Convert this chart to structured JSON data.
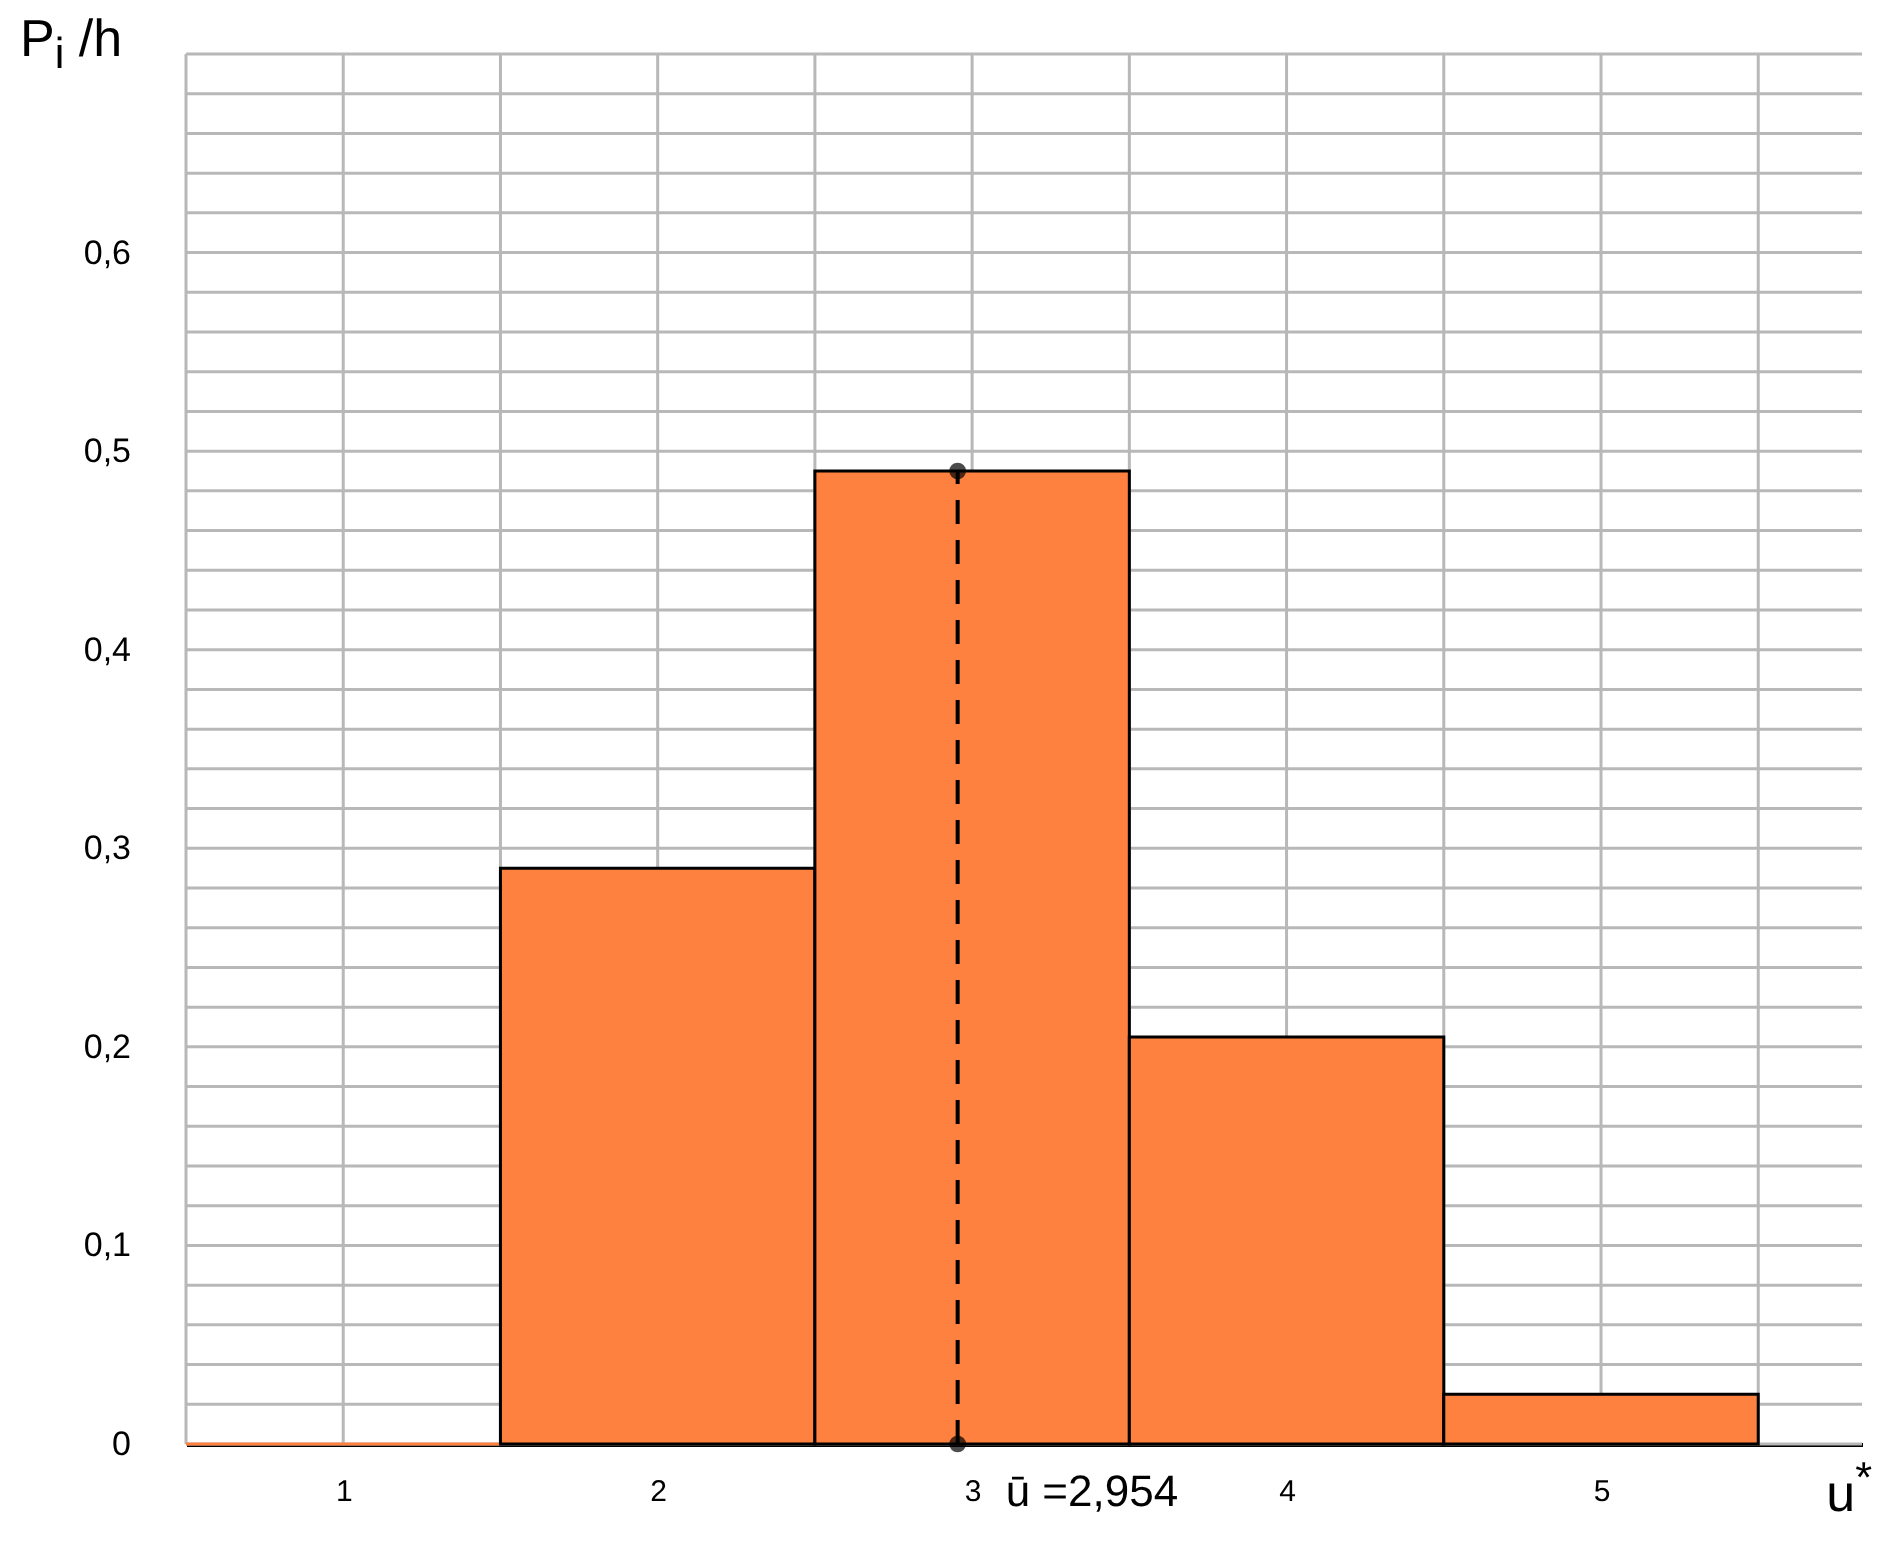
{
  "chart_data": {
    "type": "histogram",
    "xlabel": "u$^{*}$",
    "ylabel": "P$_{i}$ /h",
    "bins": [
      0.5,
      1.5,
      2.5,
      3.5,
      4.5,
      5.5
    ],
    "values": [
      0,
      0.29,
      0.49,
      0.205,
      0.025
    ],
    "color": "#fe8140",
    "series": [
      {
        "type": "line",
        "x": [
          2.954,
          2.954
        ],
        "values": [
          0,
          0.49
        ],
        "color": "#000000",
        "marker": "circle",
        "line_style": "dashed"
      }
    ],
    "annotations": [
      {
        "text": "ū =2,954",
        "x": 2.954,
        "y": 0
      }
    ],
    "xlim": [
      0.5,
      5.83
    ],
    "ylim": [
      0,
      0.7
    ],
    "xticks": [
      {
        "value": 0.5,
        "label": null
      },
      1,
      {
        "value": 1.5,
        "label": null
      },
      2,
      {
        "value": 2.5,
        "label": null
      },
      3,
      {
        "value": 3.5,
        "label": null
      },
      4,
      {
        "value": 4.5,
        "label": null
      },
      5,
      {
        "value": 5.5,
        "label": null
      }
    ],
    "yticks": [
      {
        "value": 0,
        "label": "0"
      },
      {
        "value": 0.02,
        "label": null
      },
      {
        "value": 0.04,
        "label": null
      },
      {
        "value": 0.06,
        "label": null
      },
      {
        "value": 0.08,
        "label": null
      },
      {
        "value": 0.1,
        "label": "0,1"
      },
      {
        "value": 0.12,
        "label": null
      },
      {
        "value": 0.14,
        "label": null
      },
      {
        "value": 0.16,
        "label": null
      },
      {
        "value": 0.18,
        "label": null
      },
      {
        "value": 0.2,
        "label": "0,2"
      },
      {
        "value": 0.22,
        "label": null
      },
      {
        "value": 0.24,
        "label": null
      },
      {
        "value": 0.26,
        "label": null
      },
      {
        "value": 0.28,
        "label": null
      },
      {
        "value": 0.3,
        "label": "0,3"
      },
      {
        "value": 0.32,
        "label": null
      },
      {
        "value": 0.34,
        "label": null
      },
      {
        "value": 0.36,
        "label": null
      },
      {
        "value": 0.38,
        "label": null
      },
      {
        "value": 0.4,
        "label": "0,4"
      },
      {
        "value": 0.42,
        "label": null
      },
      {
        "value": 0.44,
        "label": null
      },
      {
        "value": 0.46,
        "label": null
      },
      {
        "value": 0.48,
        "label": null
      },
      {
        "value": 0.5,
        "label": "0,5"
      },
      {
        "value": 0.52,
        "label": null
      },
      {
        "value": 0.54,
        "label": null
      },
      {
        "value": 0.56,
        "label": null
      },
      {
        "value": 0.58,
        "label": null
      },
      {
        "value": 0.6,
        "label": "0,6"
      },
      {
        "value": 0.62,
        "label": null
      },
      {
        "value": 0.64,
        "label": null
      },
      {
        "value": 0.66,
        "label": null
      },
      {
        "value": 0.68,
        "label": null
      },
      {
        "value": 0.7,
        "label": null
      }
    ],
    "grid": true
  }
}
